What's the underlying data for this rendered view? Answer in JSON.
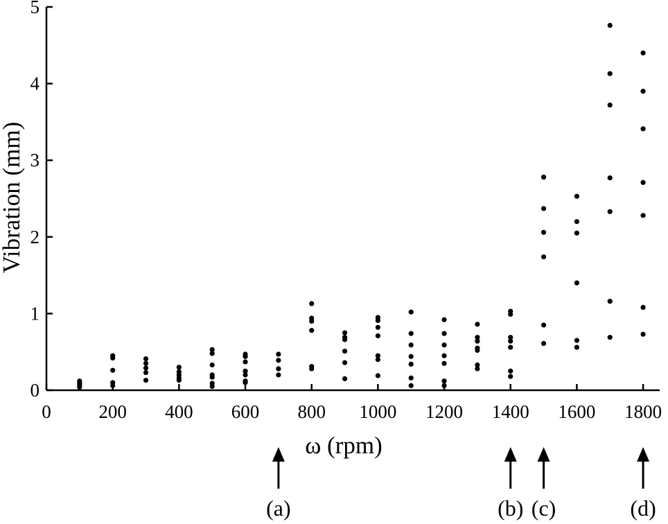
{
  "chart_data": {
    "type": "scatter",
    "xlabel": "ω (rpm)",
    "ylabel": "Vibration (mm)",
    "xlim": [
      0,
      1850
    ],
    "ylim": [
      0,
      5
    ],
    "x_ticks": [
      0,
      200,
      400,
      600,
      800,
      1000,
      1200,
      1400,
      1600,
      1800
    ],
    "y_ticks": [
      0,
      1,
      2,
      3,
      4,
      5
    ],
    "grid": false,
    "points": [
      {
        "x": 100,
        "y": 0.12
      },
      {
        "x": 100,
        "y": 0.1
      },
      {
        "x": 100,
        "y": 0.08
      },
      {
        "x": 100,
        "y": 0.06
      },
      {
        "x": 100,
        "y": 0.04
      },
      {
        "x": 200,
        "y": 0.45
      },
      {
        "x": 200,
        "y": 0.42
      },
      {
        "x": 200,
        "y": 0.26
      },
      {
        "x": 200,
        "y": 0.1
      },
      {
        "x": 200,
        "y": 0.06
      },
      {
        "x": 300,
        "y": 0.41
      },
      {
        "x": 300,
        "y": 0.35
      },
      {
        "x": 300,
        "y": 0.29
      },
      {
        "x": 300,
        "y": 0.23
      },
      {
        "x": 300,
        "y": 0.13
      },
      {
        "x": 400,
        "y": 0.3
      },
      {
        "x": 400,
        "y": 0.24
      },
      {
        "x": 400,
        "y": 0.2
      },
      {
        "x": 400,
        "y": 0.16
      },
      {
        "x": 400,
        "y": 0.13
      },
      {
        "x": 500,
        "y": 0.53
      },
      {
        "x": 500,
        "y": 0.48
      },
      {
        "x": 500,
        "y": 0.33
      },
      {
        "x": 500,
        "y": 0.2
      },
      {
        "x": 500,
        "y": 0.17
      },
      {
        "x": 500,
        "y": 0.09
      },
      {
        "x": 500,
        "y": 0.05
      },
      {
        "x": 600,
        "y": 0.47
      },
      {
        "x": 600,
        "y": 0.44
      },
      {
        "x": 600,
        "y": 0.37
      },
      {
        "x": 600,
        "y": 0.25
      },
      {
        "x": 600,
        "y": 0.2
      },
      {
        "x": 600,
        "y": 0.12
      },
      {
        "x": 600,
        "y": 0.1
      },
      {
        "x": 700,
        "y": 0.47
      },
      {
        "x": 700,
        "y": 0.39
      },
      {
        "x": 700,
        "y": 0.28
      },
      {
        "x": 700,
        "y": 0.2
      },
      {
        "x": 800,
        "y": 1.13
      },
      {
        "x": 800,
        "y": 0.94
      },
      {
        "x": 800,
        "y": 0.9
      },
      {
        "x": 800,
        "y": 0.78
      },
      {
        "x": 800,
        "y": 0.31
      },
      {
        "x": 800,
        "y": 0.28
      },
      {
        "x": 900,
        "y": 0.75
      },
      {
        "x": 900,
        "y": 0.69
      },
      {
        "x": 900,
        "y": 0.66
      },
      {
        "x": 900,
        "y": 0.51
      },
      {
        "x": 900,
        "y": 0.36
      },
      {
        "x": 900,
        "y": 0.15
      },
      {
        "x": 1000,
        "y": 0.95
      },
      {
        "x": 1000,
        "y": 0.91
      },
      {
        "x": 1000,
        "y": 0.82
      },
      {
        "x": 1000,
        "y": 0.71
      },
      {
        "x": 1000,
        "y": 0.45
      },
      {
        "x": 1000,
        "y": 0.4
      },
      {
        "x": 1000,
        "y": 0.19
      },
      {
        "x": 1100,
        "y": 1.02
      },
      {
        "x": 1100,
        "y": 0.74
      },
      {
        "x": 1100,
        "y": 0.59
      },
      {
        "x": 1100,
        "y": 0.44
      },
      {
        "x": 1100,
        "y": 0.34
      },
      {
        "x": 1100,
        "y": 0.16
      },
      {
        "x": 1100,
        "y": 0.06
      },
      {
        "x": 1200,
        "y": 0.92
      },
      {
        "x": 1200,
        "y": 0.74
      },
      {
        "x": 1200,
        "y": 0.59
      },
      {
        "x": 1200,
        "y": 0.45
      },
      {
        "x": 1200,
        "y": 0.35
      },
      {
        "x": 1200,
        "y": 0.12
      },
      {
        "x": 1200,
        "y": 0.06
      },
      {
        "x": 1300,
        "y": 0.86
      },
      {
        "x": 1300,
        "y": 0.69
      },
      {
        "x": 1300,
        "y": 0.64
      },
      {
        "x": 1300,
        "y": 0.55
      },
      {
        "x": 1300,
        "y": 0.52
      },
      {
        "x": 1300,
        "y": 0.33
      },
      {
        "x": 1300,
        "y": 0.28
      },
      {
        "x": 1400,
        "y": 1.03
      },
      {
        "x": 1400,
        "y": 0.99
      },
      {
        "x": 1400,
        "y": 0.69
      },
      {
        "x": 1400,
        "y": 0.64
      },
      {
        "x": 1400,
        "y": 0.56
      },
      {
        "x": 1400,
        "y": 0.25
      },
      {
        "x": 1400,
        "y": 0.18
      },
      {
        "x": 1500,
        "y": 2.78
      },
      {
        "x": 1500,
        "y": 2.37
      },
      {
        "x": 1500,
        "y": 2.06
      },
      {
        "x": 1500,
        "y": 1.74
      },
      {
        "x": 1500,
        "y": 0.85
      },
      {
        "x": 1500,
        "y": 0.61
      },
      {
        "x": 1600,
        "y": 2.53
      },
      {
        "x": 1600,
        "y": 2.2
      },
      {
        "x": 1600,
        "y": 2.05
      },
      {
        "x": 1600,
        "y": 1.4
      },
      {
        "x": 1600,
        "y": 0.65
      },
      {
        "x": 1600,
        "y": 0.56
      },
      {
        "x": 1700,
        "y": 4.76
      },
      {
        "x": 1700,
        "y": 4.13
      },
      {
        "x": 1700,
        "y": 3.72
      },
      {
        "x": 1700,
        "y": 2.77
      },
      {
        "x": 1700,
        "y": 2.33
      },
      {
        "x": 1700,
        "y": 1.16
      },
      {
        "x": 1700,
        "y": 0.69
      },
      {
        "x": 1800,
        "y": 4.4
      },
      {
        "x": 1800,
        "y": 3.9
      },
      {
        "x": 1800,
        "y": 3.41
      },
      {
        "x": 1800,
        "y": 2.71
      },
      {
        "x": 1800,
        "y": 2.28
      },
      {
        "x": 1800,
        "y": 1.08
      },
      {
        "x": 1800,
        "y": 0.73
      }
    ],
    "annotations": [
      {
        "label": "(a)",
        "x": 700,
        "marker": "up-arrow"
      },
      {
        "label": "(b)",
        "x": 1400,
        "marker": "up-arrow"
      },
      {
        "label": "(c)",
        "x": 1500,
        "marker": "up-arrow"
      },
      {
        "label": "(d)",
        "x": 1800,
        "marker": "up-arrow"
      }
    ]
  }
}
